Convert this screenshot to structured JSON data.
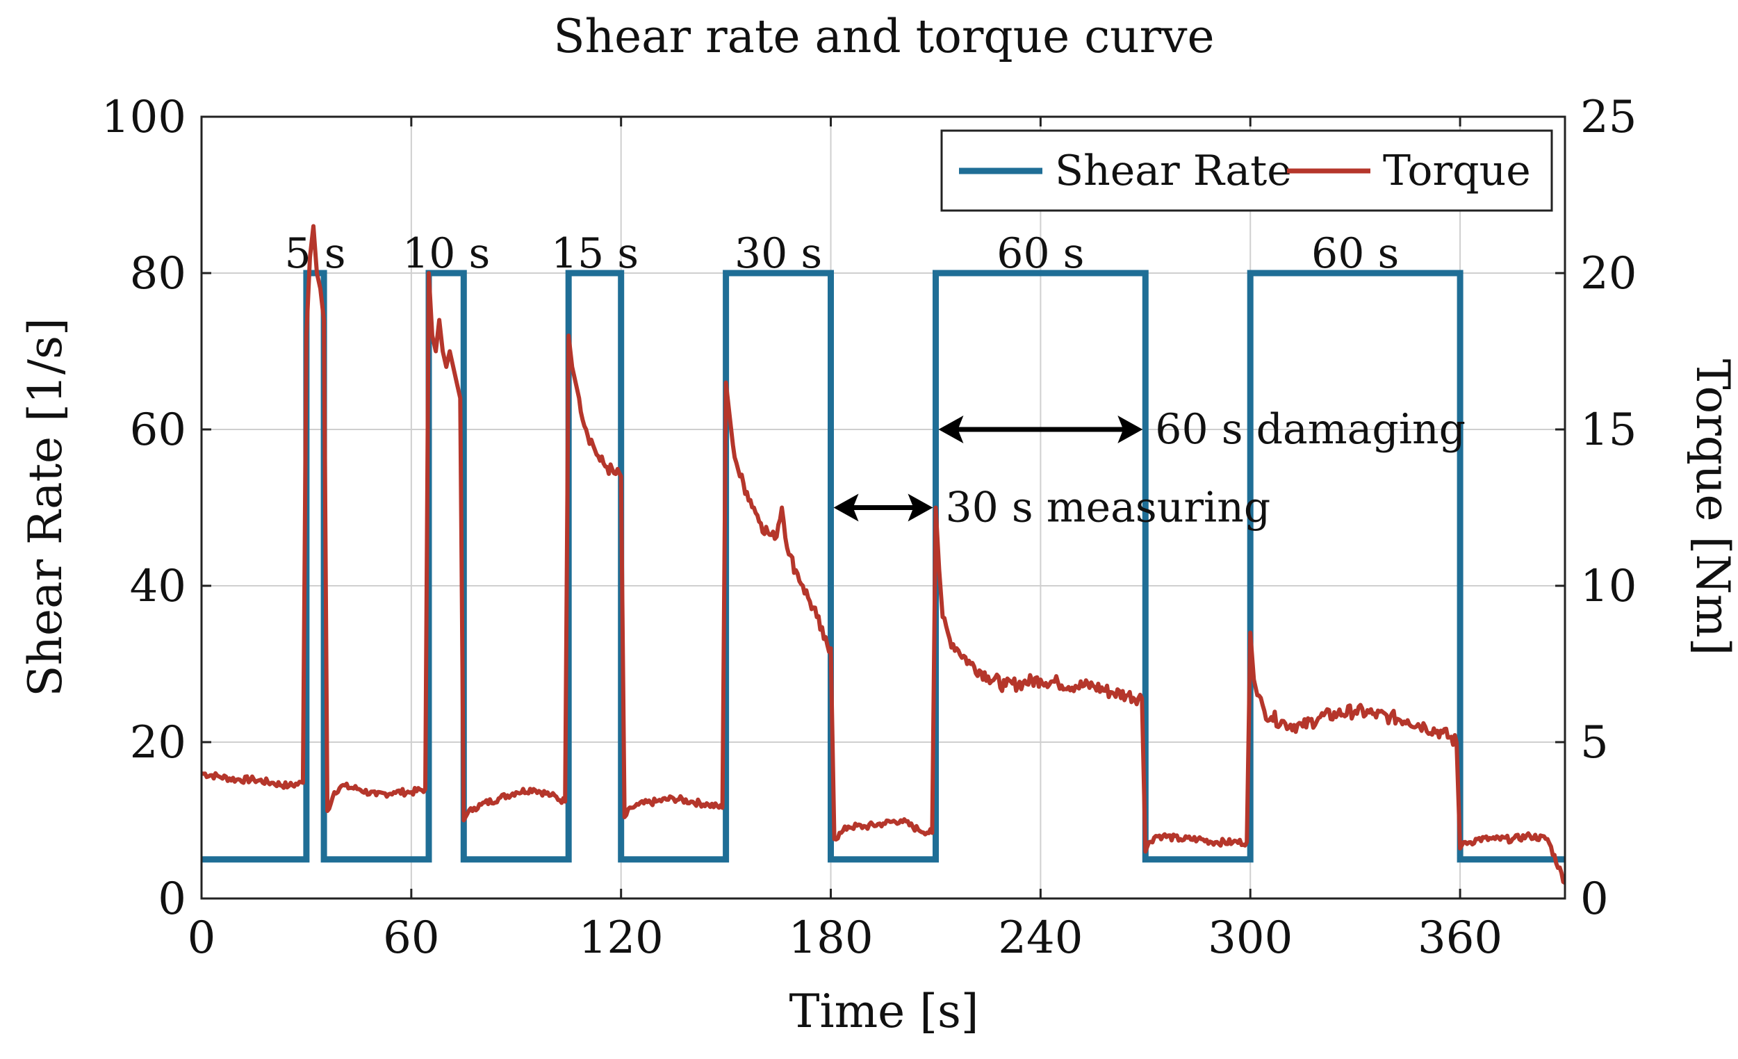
{
  "chart_data": {
    "type": "line",
    "title": "Shear rate and torque curve",
    "xlabel": "Time [s]",
    "ylabel_left": "Shear Rate [1/s]",
    "ylabel_right": "Torque [Nm]",
    "xlim": [
      0,
      390
    ],
    "ylim_left": [
      0,
      100
    ],
    "ylim_right": [
      0,
      25
    ],
    "x_ticks": [
      0,
      60,
      120,
      180,
      240,
      300,
      360
    ],
    "y_ticks_left": [
      0,
      20,
      40,
      60,
      80,
      100
    ],
    "y_ticks_right": [
      0,
      5,
      10,
      15,
      20,
      25
    ],
    "grid": true,
    "legend_position": "top-right",
    "colors": {
      "shear_rate": "#1f6e96",
      "torque": "#b5362b",
      "grid": "#cfcfcf",
      "axis": "#222222"
    },
    "series": [
      {
        "name": "Shear Rate",
        "axis": "left",
        "x": [
          0,
          30,
          30,
          35,
          35,
          65,
          65,
          75,
          75,
          105,
          105,
          120,
          120,
          150,
          150,
          180,
          180,
          210,
          210,
          270,
          270,
          300,
          300,
          360,
          360,
          390
        ],
        "y": [
          5,
          5,
          80,
          80,
          5,
          5,
          80,
          80,
          5,
          5,
          80,
          80,
          5,
          5,
          80,
          80,
          5,
          5,
          80,
          80,
          5,
          5,
          80,
          80,
          5,
          5
        ]
      },
      {
        "name": "Torque",
        "axis": "right",
        "x": [
          0,
          5,
          10,
          15,
          20,
          25,
          29,
          30,
          31,
          32,
          33,
          34,
          35,
          36,
          38,
          40,
          45,
          50,
          55,
          60,
          64,
          65,
          66,
          67,
          68,
          69,
          70,
          71,
          72,
          73,
          74,
          75,
          76,
          78,
          80,
          85,
          90,
          95,
          100,
          104,
          105,
          106,
          107,
          108,
          110,
          112,
          114,
          116,
          118,
          120,
          121,
          123,
          125,
          130,
          135,
          140,
          145,
          149,
          150,
          151,
          152,
          154,
          156,
          158,
          160,
          162,
          164,
          166,
          168,
          170,
          172,
          174,
          176,
          178,
          180,
          181,
          183,
          185,
          190,
          195,
          200,
          205,
          209,
          210,
          211,
          212,
          214,
          216,
          220,
          225,
          230,
          235,
          240,
          245,
          250,
          255,
          260,
          265,
          269,
          270,
          271,
          273,
          275,
          280,
          285,
          290,
          295,
          299,
          300,
          301,
          302,
          304,
          306,
          310,
          315,
          320,
          325,
          330,
          335,
          340,
          345,
          350,
          355,
          359,
          360,
          361,
          363,
          365,
          370,
          375,
          380,
          385,
          390
        ],
        "y": [
          4.0,
          3.9,
          3.8,
          3.8,
          3.7,
          3.6,
          3.7,
          18.0,
          20.5,
          21.5,
          20.0,
          19.5,
          18.5,
          2.8,
          3.4,
          3.6,
          3.5,
          3.3,
          3.4,
          3.4,
          3.5,
          20.0,
          18.0,
          17.5,
          18.5,
          17.5,
          17.0,
          17.5,
          17.0,
          16.5,
          16.0,
          2.5,
          2.7,
          2.9,
          3.0,
          3.2,
          3.4,
          3.5,
          3.3,
          3.1,
          18.0,
          17.0,
          16.5,
          16.0,
          15.0,
          14.5,
          14.0,
          13.8,
          13.6,
          13.5,
          2.6,
          2.9,
          3.0,
          3.1,
          3.2,
          3.1,
          3.0,
          2.9,
          16.5,
          15.5,
          14.5,
          13.5,
          13.0,
          12.5,
          12.0,
          11.7,
          11.5,
          12.5,
          11.0,
          10.5,
          10.0,
          9.5,
          9.0,
          8.3,
          8.0,
          1.9,
          2.1,
          2.3,
          2.3,
          2.4,
          2.5,
          2.2,
          2.1,
          12.5,
          10.5,
          9.0,
          8.3,
          8.0,
          7.5,
          7.1,
          6.8,
          6.9,
          7.0,
          6.9,
          6.8,
          6.8,
          6.6,
          6.5,
          6.4,
          1.5,
          1.8,
          2.0,
          2.0,
          1.9,
          1.9,
          1.8,
          1.8,
          1.8,
          8.5,
          7.0,
          6.5,
          6.0,
          5.8,
          5.6,
          5.5,
          5.8,
          5.9,
          6.0,
          5.9,
          5.8,
          5.7,
          5.5,
          5.3,
          5.0,
          1.6,
          1.8,
          1.8,
          1.9,
          1.9,
          1.9,
          2.0,
          1.9,
          0.5
        ]
      }
    ],
    "interval_labels": [
      {
        "text": "5 s",
        "x": 32.5
      },
      {
        "text": "10 s",
        "x": 70
      },
      {
        "text": "15 s",
        "x": 112.5
      },
      {
        "text": "30 s",
        "x": 165
      },
      {
        "text": "60 s",
        "x": 240
      },
      {
        "text": "60 s",
        "x": 330
      }
    ],
    "annotations": [
      {
        "text": "30 s measuring",
        "x_start": 180,
        "x_end": 210,
        "y": 50
      },
      {
        "text": "60 s damaging",
        "x_start": 210,
        "x_end": 270,
        "y": 60
      }
    ]
  }
}
